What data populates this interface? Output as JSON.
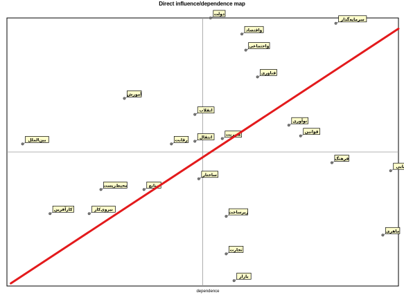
{
  "chart_data": {
    "type": "scatter",
    "title": "Direct influence/dependence map",
    "xlabel": "dependence",
    "ylabel": "",
    "xlim": [
      0,
      100
    ],
    "ylim": [
      0,
      100
    ],
    "grid": false,
    "regression_line": {
      "color": "#e31a1c",
      "from": [
        1,
        1
      ],
      "to": [
        100,
        96
      ]
    },
    "reference_lines": {
      "x": 50,
      "y": 50
    },
    "points": [
      {
        "label": "دولت",
        "x": 52,
        "y": 100
      },
      {
        "label": "واقتصاد",
        "x": 60,
        "y": 94
      },
      {
        "label": "سرمایه‌گذار",
        "x": 84,
        "y": 98
      },
      {
        "label": "واجتماعی",
        "x": 61,
        "y": 88
      },
      {
        "label": "فناوری",
        "x": 64,
        "y": 78
      },
      {
        "label": "آموزش",
        "x": 30,
        "y": 70
      },
      {
        "label": "انقلاب",
        "x": 48,
        "y": 64
      },
      {
        "label": "نوآوری",
        "x": 72,
        "y": 60
      },
      {
        "label": "قوانین",
        "x": 75,
        "y": 56
      },
      {
        "label": "بین‌الملل",
        "x": 4,
        "y": 53
      },
      {
        "label": "رقابت",
        "x": 42,
        "y": 53
      },
      {
        "label": "انتقال",
        "x": 48,
        "y": 54
      },
      {
        "label": "مدیریت",
        "x": 55,
        "y": 55
      },
      {
        "label": "فرهنگ",
        "x": 83,
        "y": 46
      },
      {
        "label": "بازاریابی",
        "x": 98,
        "y": 43
      },
      {
        "label": "ساختار",
        "x": 49,
        "y": 40
      },
      {
        "label": "محیط‌زیست",
        "x": 24,
        "y": 36
      },
      {
        "label": "منابع",
        "x": 35,
        "y": 36
      },
      {
        "label": "کارآفرین",
        "x": 11,
        "y": 27
      },
      {
        "label": "نیروی‌کار",
        "x": 21,
        "y": 27
      },
      {
        "label": "زیرساخت",
        "x": 56,
        "y": 26
      },
      {
        "label": "ماهری",
        "x": 96,
        "y": 19
      },
      {
        "label": "تجارت",
        "x": 56,
        "y": 12
      },
      {
        "label": "بازار",
        "x": 58,
        "y": 2
      }
    ]
  }
}
